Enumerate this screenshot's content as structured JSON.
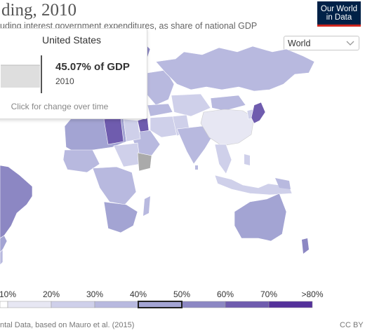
{
  "header": {
    "title": "ding, 2010",
    "subtitle": "uding interest government expenditures, as share of national GDP"
  },
  "logo": {
    "line1": "Our World",
    "line2": "in Data"
  },
  "region_select": {
    "value": "World"
  },
  "tooltip": {
    "country": "United States",
    "value": "45.07% of GDP",
    "year": "2010",
    "hint": "Click for change over time"
  },
  "legend": {
    "labels": [
      "10%",
      "20%",
      "30%",
      "40%",
      "50%",
      "60%",
      "70%",
      ">80%"
    ],
    "colors": [
      "#ffffff",
      "#e7e7f3",
      "#cfd0ea",
      "#b8b9df",
      "#a3a4d3",
      "#8c87c3",
      "#6f5cae",
      "#54319a"
    ],
    "highlighted_bin": "40%–50%"
  },
  "footer": {
    "source": "ntal Data, based on Mauro et al. (2015)",
    "license": "CC BY"
  },
  "colors": {
    "ocean": "#ffffff",
    "no_data": "#aaaaaa",
    "logo_background": "#002147",
    "logo_accent": "#ce261e"
  }
}
